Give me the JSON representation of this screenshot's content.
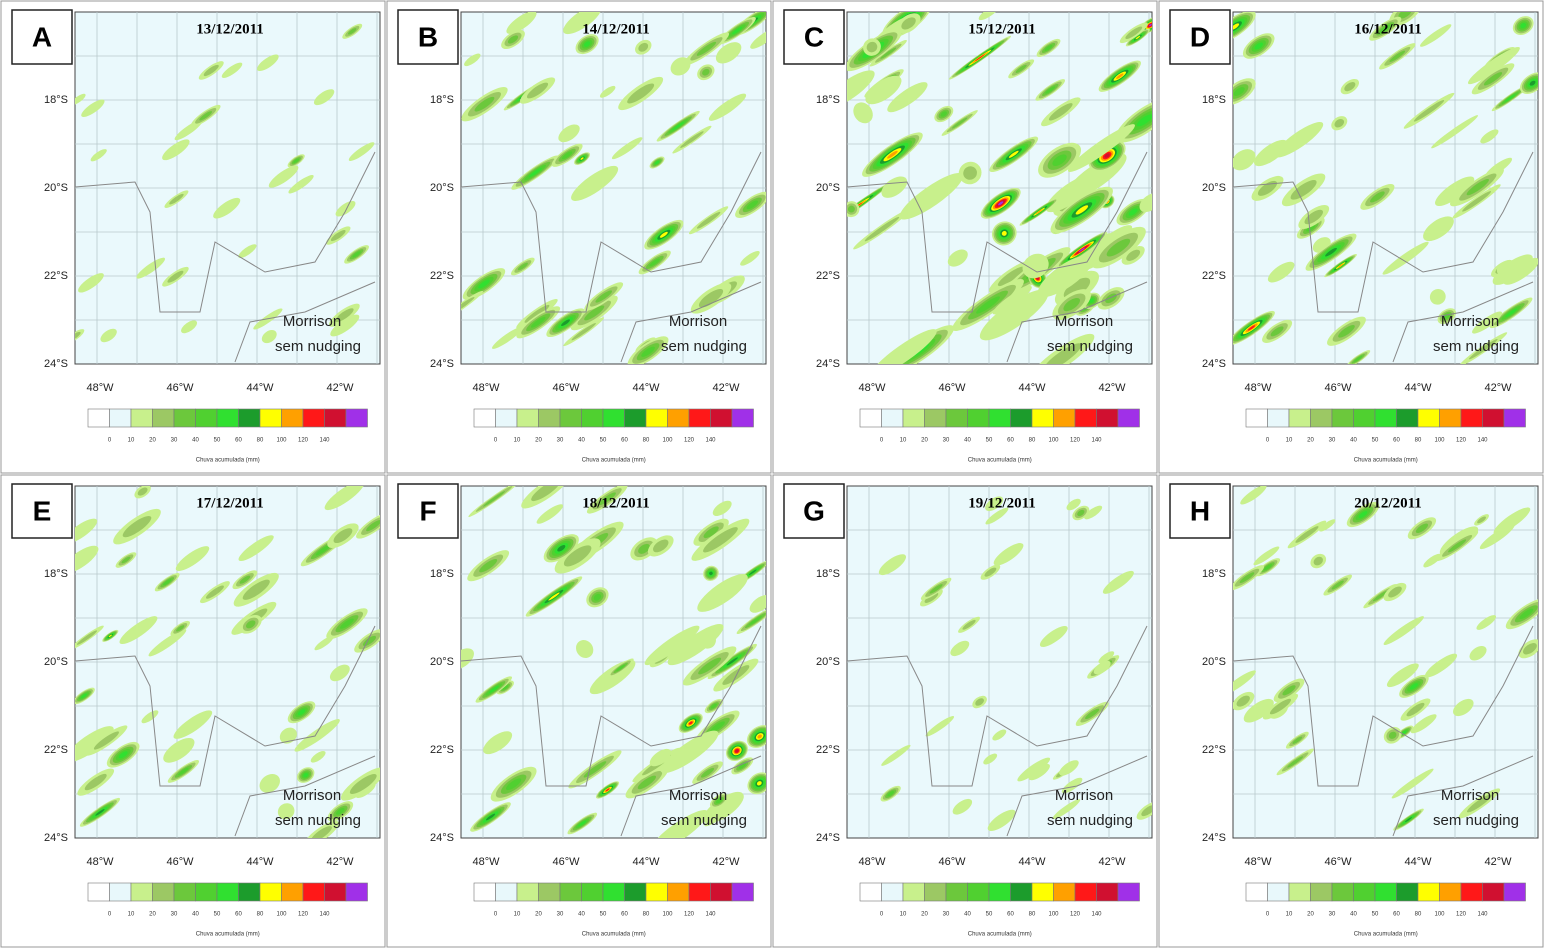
{
  "panels": [
    {
      "letter": "A",
      "date": "13/12/2011"
    },
    {
      "letter": "B",
      "date": "14/12/2011"
    },
    {
      "letter": "C",
      "date": "15/12/2011"
    },
    {
      "letter": "D",
      "date": "16/12/2011"
    },
    {
      "letter": "E",
      "date": "17/12/2011"
    },
    {
      "letter": "F",
      "date": "18/12/2011"
    },
    {
      "letter": "G",
      "date": "19/12/2011"
    },
    {
      "letter": "H",
      "date": "20/12/2011"
    }
  ],
  "latitude_labels": [
    "18°S",
    "20°S",
    "22°S",
    "24°S"
  ],
  "longitude_labels": [
    "48°W",
    "46°W",
    "44°W",
    "42°W"
  ],
  "model_label": {
    "line1": "Morrison",
    "line2": "sem nudging"
  },
  "legend": {
    "colors": [
      "#ffffff",
      "#e8f8fb",
      "#c8f08c",
      "#9cc864",
      "#6cc83c",
      "#50d030",
      "#30e030",
      "#1c9c2c",
      "#ffff00",
      "#ffa000",
      "#ff1818",
      "#d01030",
      "#a030e8"
    ],
    "tick_labels": [
      0,
      10,
      20,
      30,
      40,
      50,
      60,
      80,
      100,
      120,
      140
    ],
    "title": "Chuva acumulada (mm)"
  }
}
